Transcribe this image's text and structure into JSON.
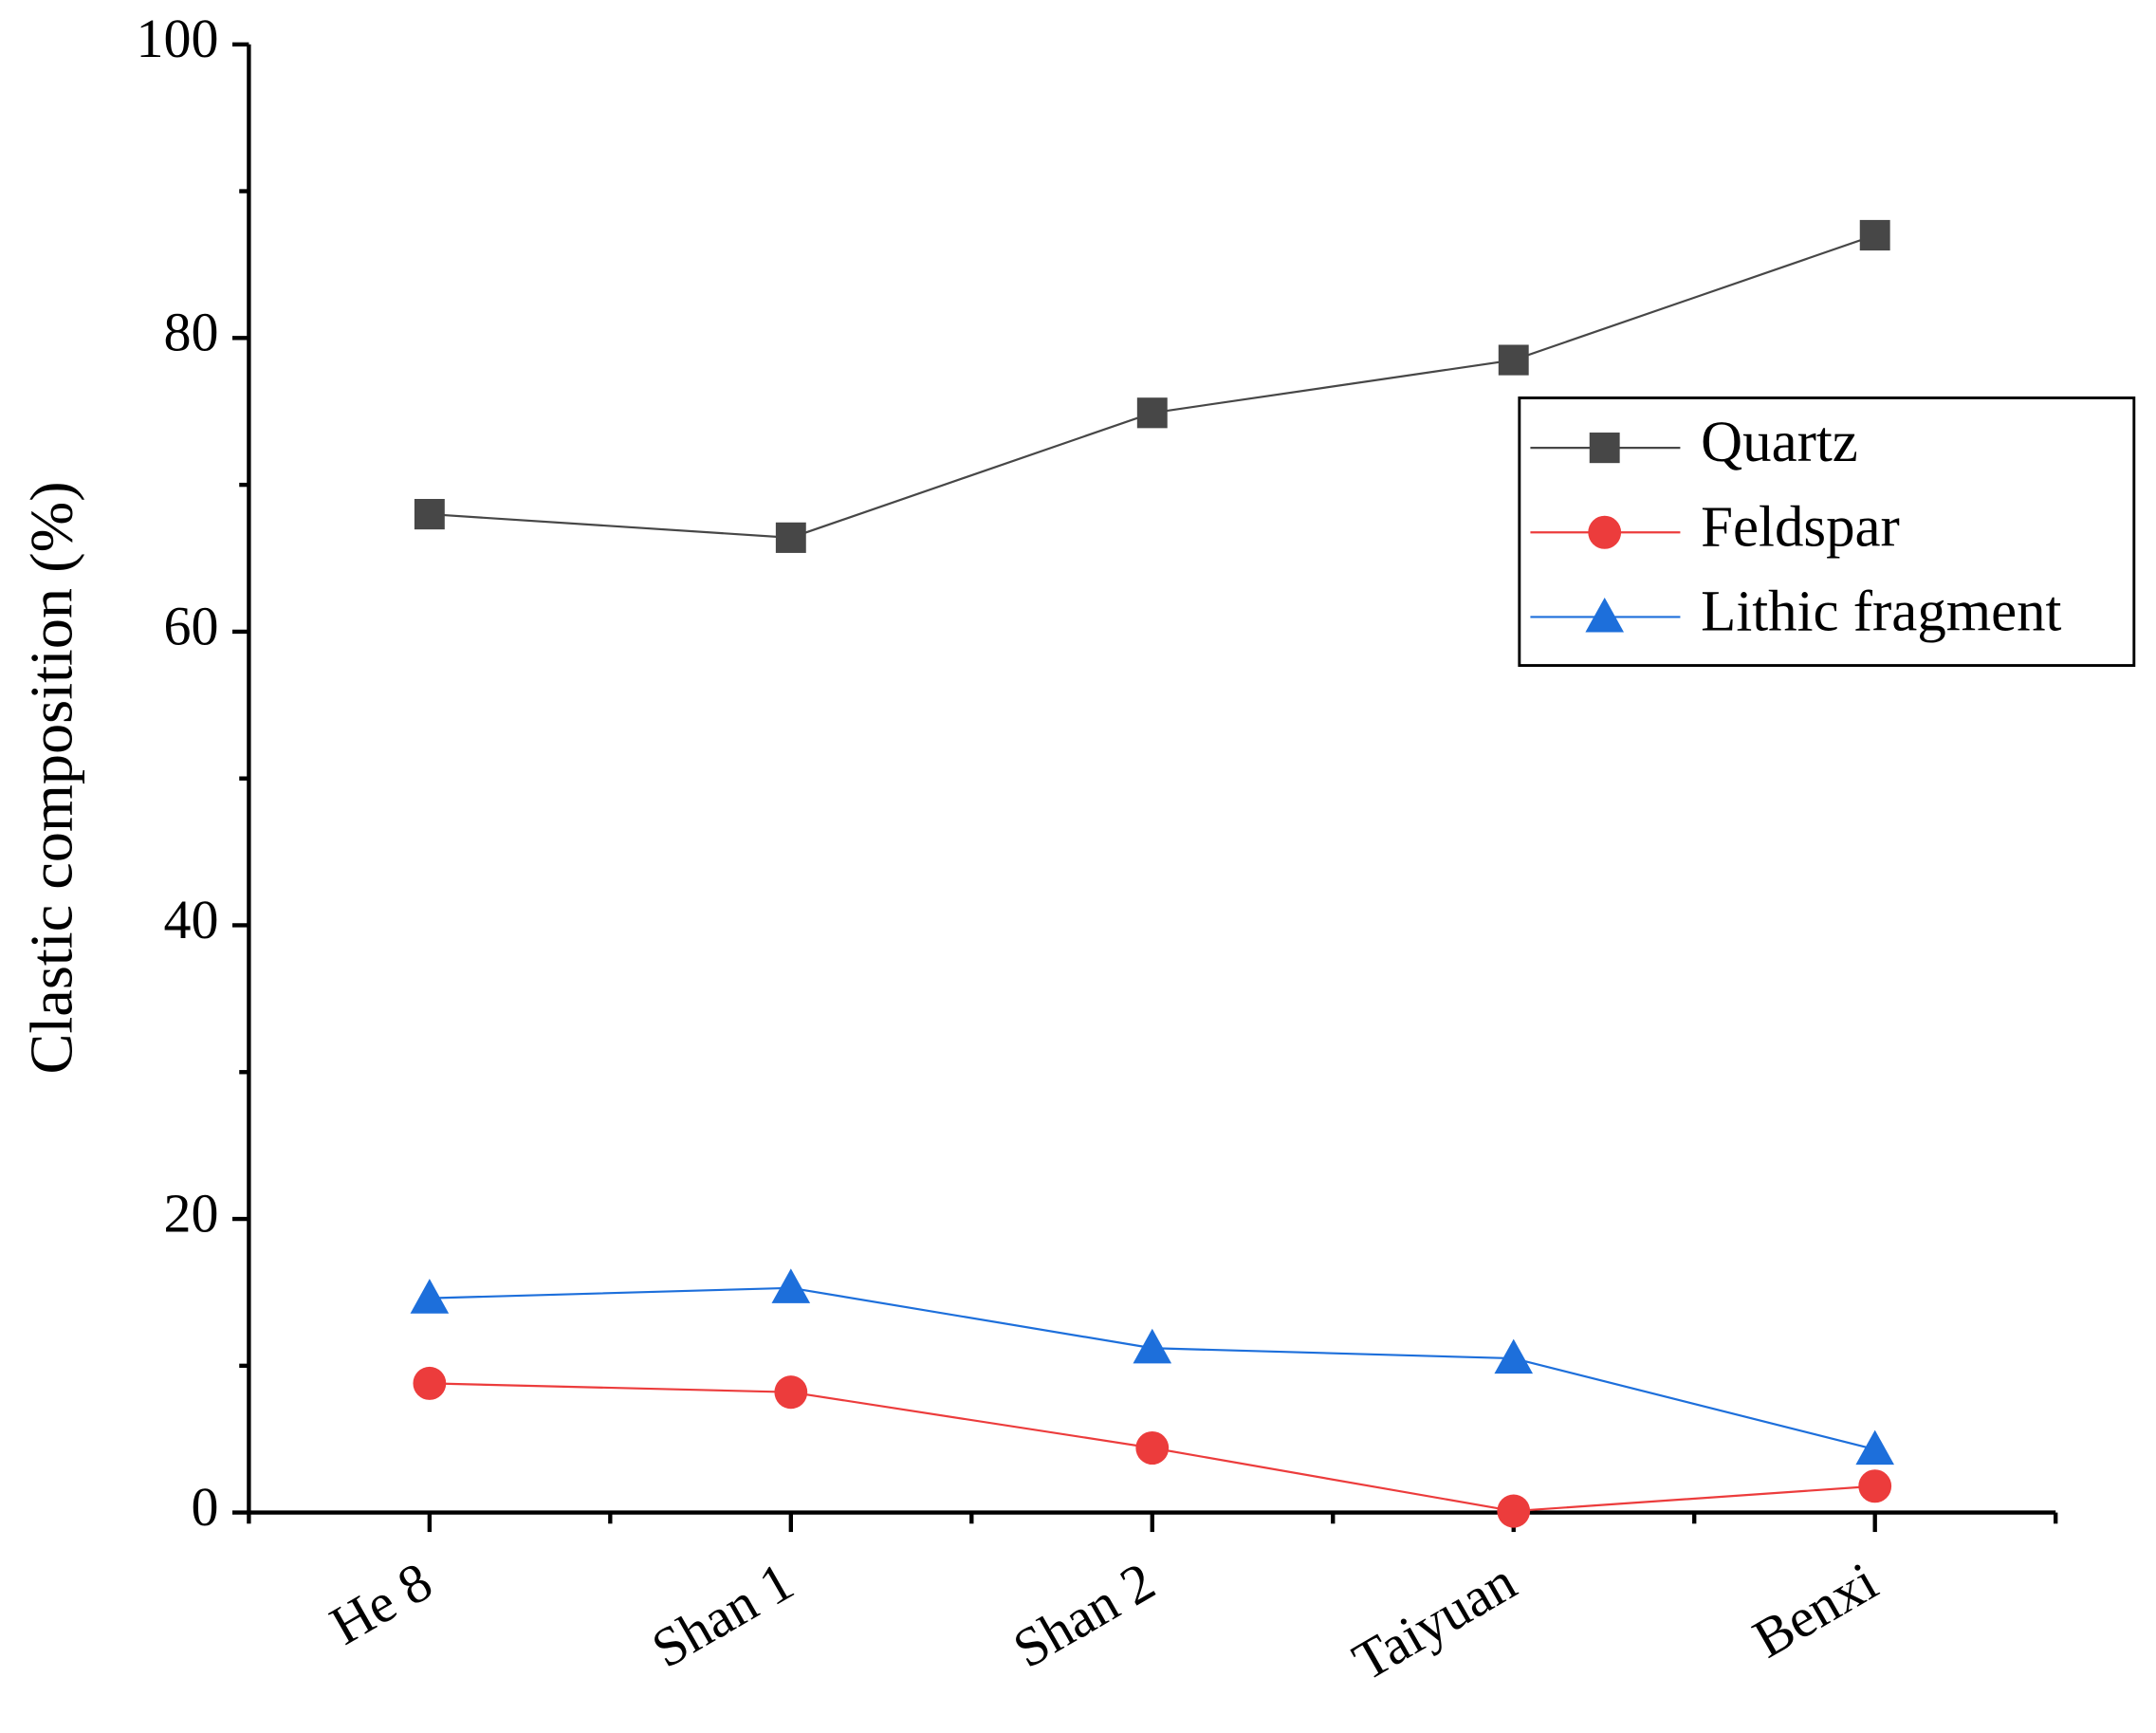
{
  "chart_data": {
    "type": "line",
    "y_label": "Clastic composition (%)",
    "categories": [
      "He 8",
      "Shan 1",
      "Shan 2",
      "Taiyuan",
      "Benxi"
    ],
    "series": [
      {
        "name": "Quartz",
        "color": "#474747",
        "marker": "square",
        "values": [
          68.0,
          66.4,
          74.9,
          78.5,
          87.0
        ]
      },
      {
        "name": "Feldspar",
        "color": "#ec3c3c",
        "marker": "circle",
        "values": [
          8.8,
          8.2,
          4.4,
          0.1,
          1.8
        ]
      },
      {
        "name": "Lithic fragment",
        "color": "#1d6fdb",
        "marker": "triangle",
        "values": [
          14.6,
          15.3,
          11.2,
          10.5,
          4.3
        ]
      }
    ],
    "ylim": [
      0,
      100
    ],
    "yticks": [
      0,
      20,
      40,
      60,
      80,
      100
    ],
    "legend": "upper right"
  }
}
